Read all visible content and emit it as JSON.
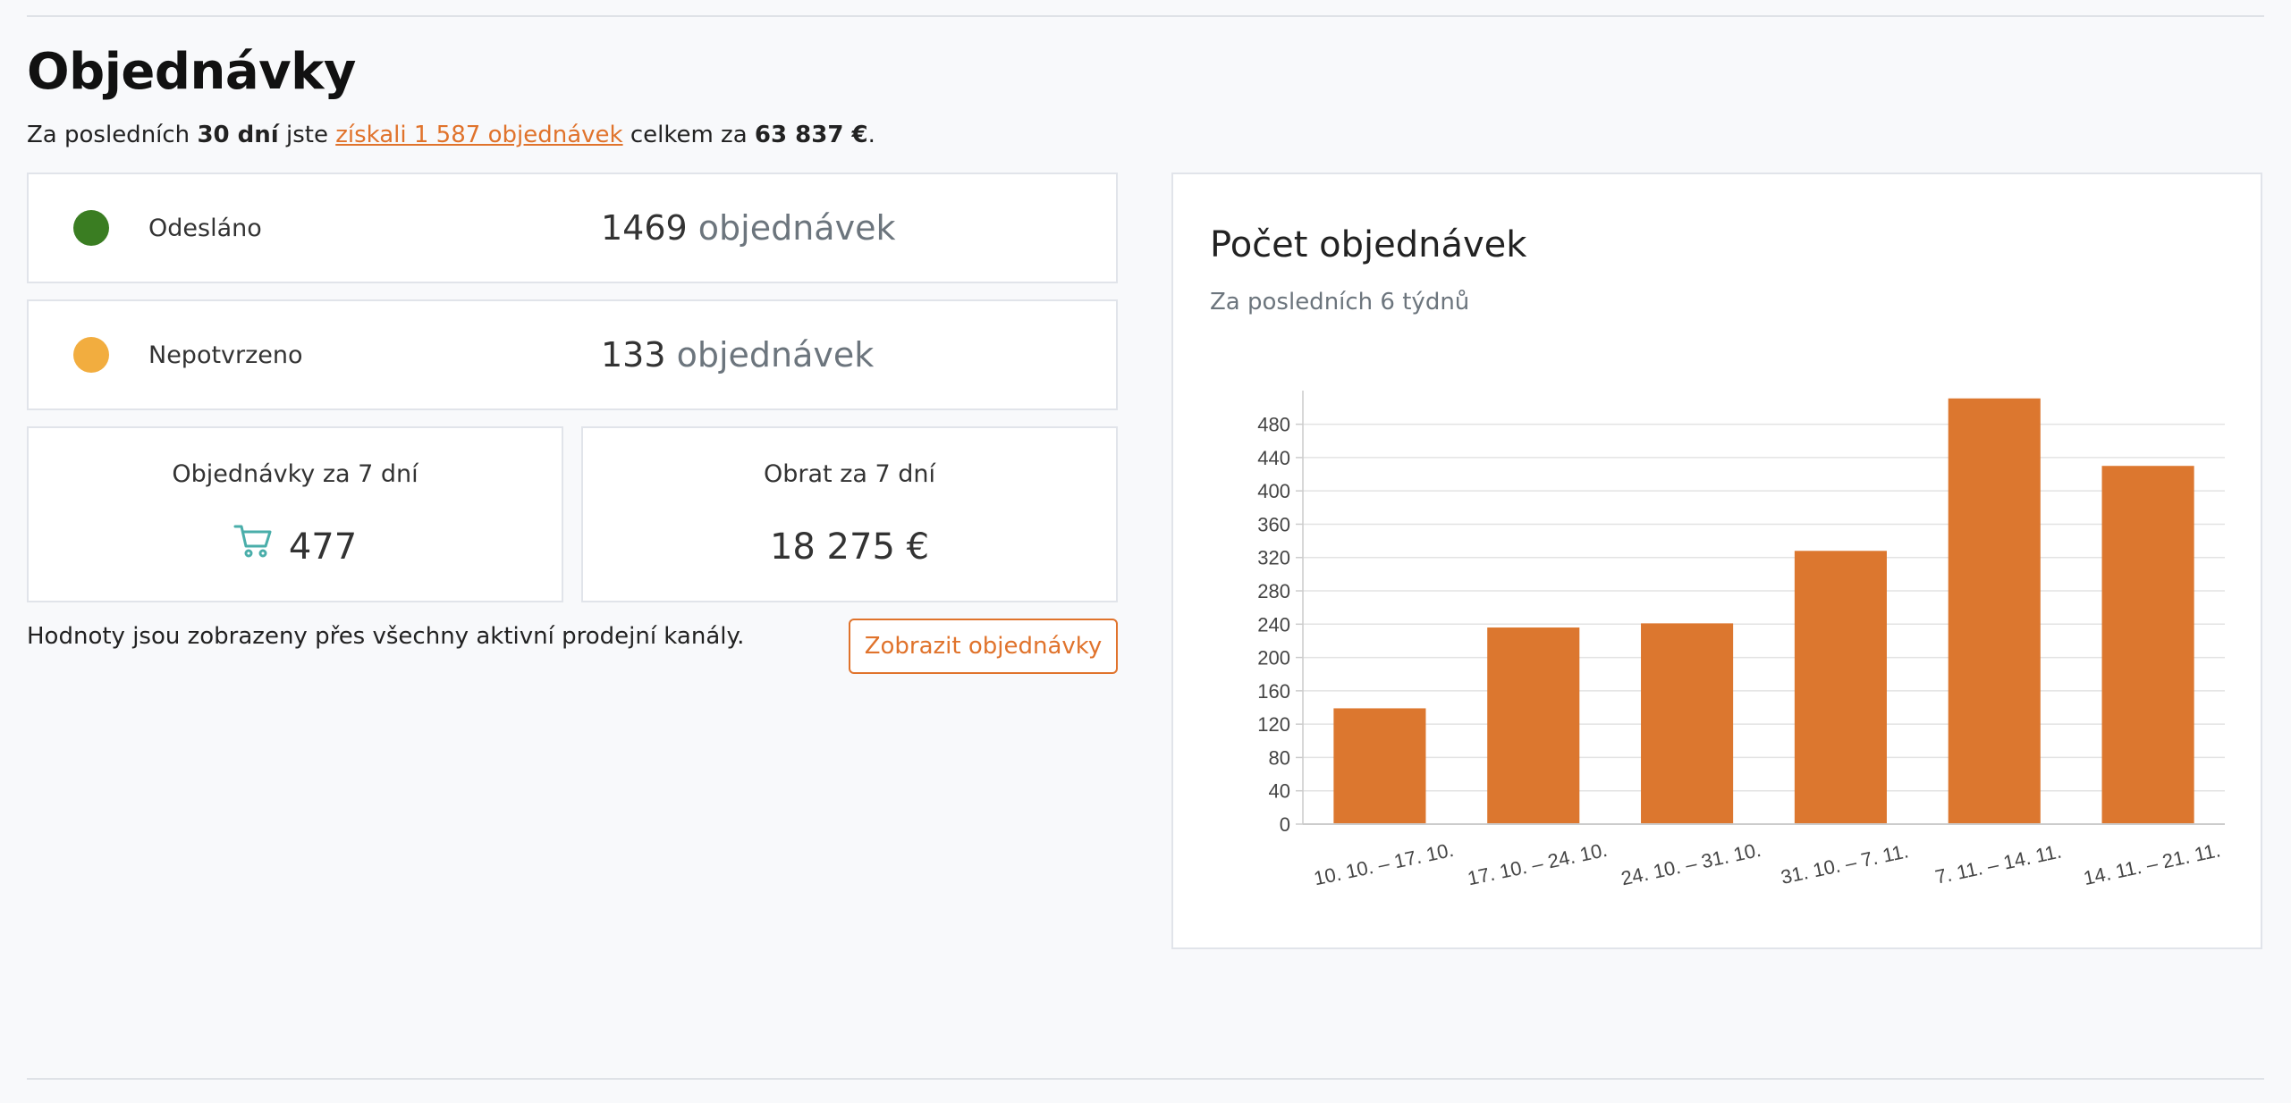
{
  "header": {
    "title": "Objednávky",
    "summary": {
      "prefix": "Za posledních ",
      "period": "30 dní",
      "middle": " jste ",
      "link": "získali 1 587 objednávek",
      "after_link": " celkem za ",
      "total": "63 837 €",
      "suffix": "."
    }
  },
  "status_cards": [
    {
      "label": "Odesláno",
      "count": "1469",
      "unit": " objednávek",
      "color": "#3a7d22"
    },
    {
      "label": "Nepotvrzeno",
      "count": "133",
      "unit": " objednávek",
      "color": "#f2ad3f"
    }
  ],
  "stats": {
    "orders_7d": {
      "label": "Objednávky za 7 dní",
      "value": "477",
      "icon": "shopping-cart-icon",
      "icon_color": "#4aaeaa"
    },
    "revenue_7d": {
      "label": "Obrat za 7 dní",
      "value": "18 275 €"
    }
  },
  "note": "Hodnoty jsou zobrazeny přes všechny aktivní prodejní kanály.",
  "actions": {
    "show_orders": "Zobrazit objednávky"
  },
  "colors": {
    "accent": "#e0732c",
    "bar": "#dc772f"
  },
  "chart": {
    "title": "Počet objednávek",
    "subtitle": "Za posledních 6 týdnů"
  },
  "chart_data": {
    "type": "bar",
    "title": "Počet objednávek",
    "subtitle": "Za posledních 6 týdnů",
    "categories": [
      "10. 10. – 17. 10.",
      "17. 10. – 24. 10.",
      "24. 10. – 31. 10.",
      "31. 10. – 7. 11.",
      "7. 11. – 14. 11.",
      "14. 11. – 21. 11."
    ],
    "values": [
      139,
      236,
      241,
      328,
      511,
      430
    ],
    "yticks": [
      0,
      40,
      80,
      120,
      160,
      200,
      240,
      280,
      320,
      360,
      400,
      440,
      480
    ],
    "ylim": [
      0,
      515
    ],
    "xlabel": "",
    "ylabel": "",
    "grid": true,
    "legend": "none",
    "color": "#dc772f"
  }
}
